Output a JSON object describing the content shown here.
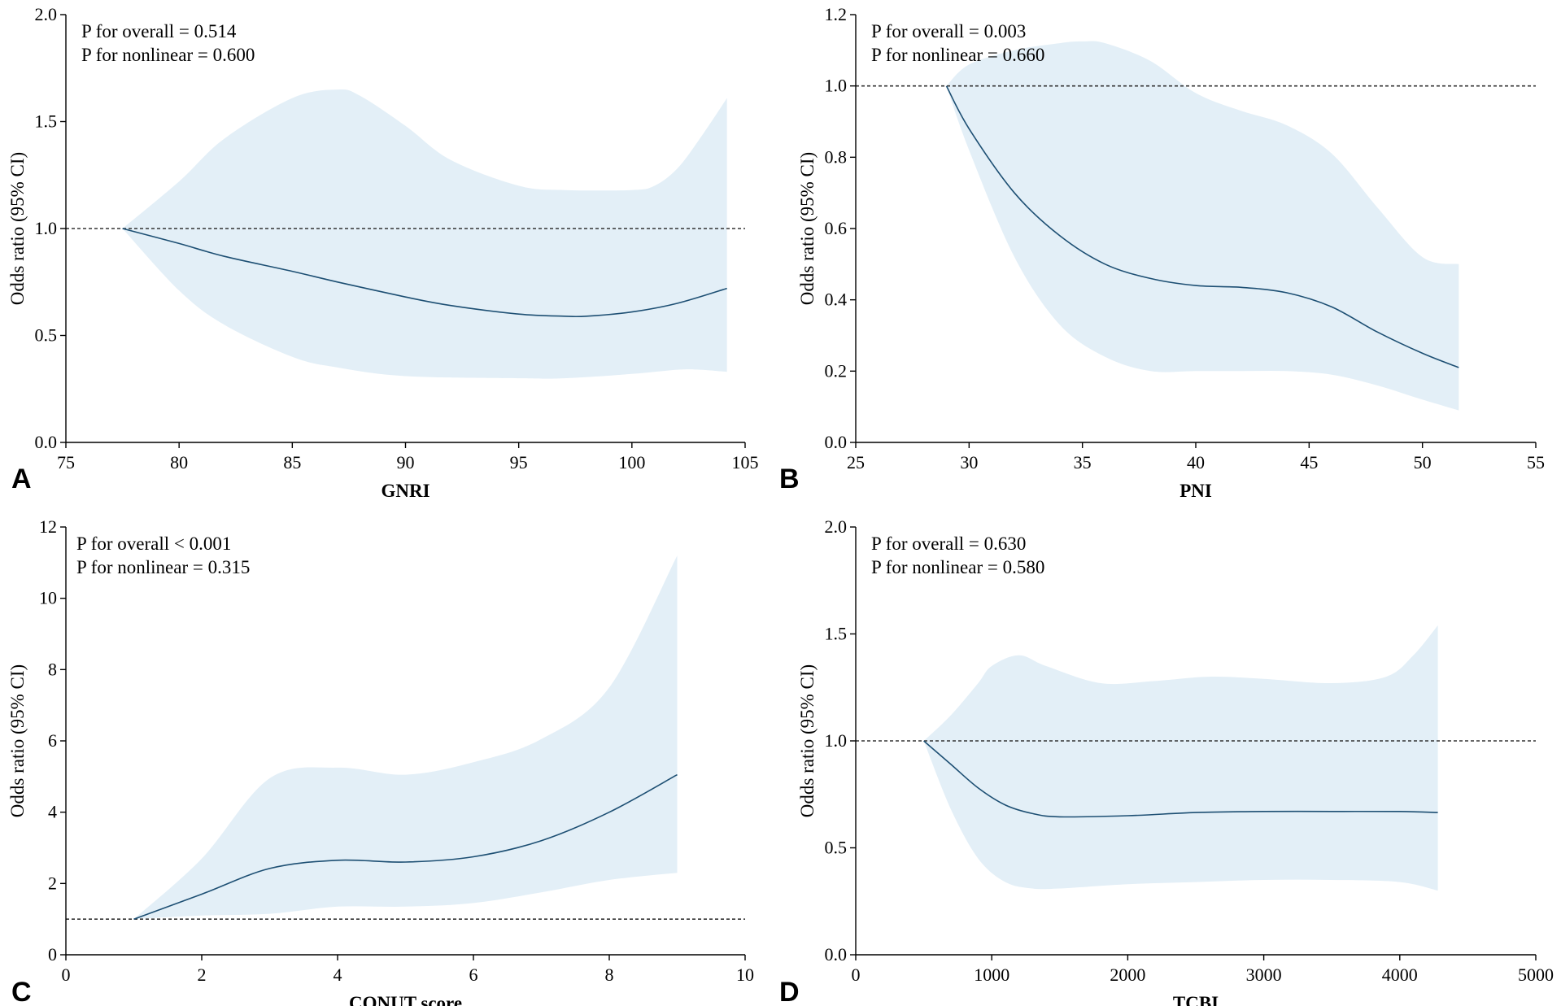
{
  "colors": {
    "band": "#e3eff7",
    "curve": "#1d4f73",
    "ref_line": "#333333",
    "axis": "#000000"
  },
  "chart_data": [
    {
      "id": "A",
      "type": "line",
      "panel_letter": "A",
      "xlabel": "GNRI",
      "ylabel": "Odds ratio (95% CI)",
      "xlim": [
        75,
        105
      ],
      "ylim": [
        0,
        2.0
      ],
      "xticks": [
        75,
        80,
        85,
        90,
        95,
        100,
        105
      ],
      "yticks": [
        0.0,
        0.5,
        1.0,
        1.5,
        2.0
      ],
      "ytick_labels": [
        "0.0",
        "0.5",
        "1.0",
        "1.5",
        "2.0"
      ],
      "reference_line": 1.0,
      "annotations": [
        "P for overall = 0.514",
        "P for nonlinear = 0.600"
      ],
      "series": [
        {
          "name": "Odds ratio",
          "x": [
            77.5,
            80,
            82,
            85,
            87,
            90,
            92,
            95,
            97,
            98,
            100,
            102,
            104.2
          ],
          "y": [
            1.0,
            0.93,
            0.87,
            0.8,
            0.75,
            0.68,
            0.64,
            0.6,
            0.59,
            0.59,
            0.61,
            0.65,
            0.72
          ]
        },
        {
          "name": "95% CI upper",
          "x": [
            77.5,
            80,
            82,
            85,
            87,
            88,
            90,
            92,
            95,
            97,
            100,
            101,
            102,
            103,
            104.2
          ],
          "y": [
            1.0,
            1.22,
            1.42,
            1.61,
            1.65,
            1.62,
            1.48,
            1.32,
            1.2,
            1.18,
            1.18,
            1.2,
            1.28,
            1.42,
            1.61
          ]
        },
        {
          "name": "95% CI lower",
          "x": [
            77.5,
            80,
            82,
            85,
            87,
            90,
            95,
            97,
            100,
            102,
            103,
            104.2
          ],
          "y": [
            1.0,
            0.71,
            0.55,
            0.4,
            0.35,
            0.31,
            0.3,
            0.3,
            0.32,
            0.34,
            0.34,
            0.33
          ]
        }
      ]
    },
    {
      "id": "B",
      "type": "line",
      "panel_letter": "B",
      "xlabel": "PNI",
      "ylabel": "Odds ratio (95% CI)",
      "xlim": [
        25,
        55
      ],
      "ylim": [
        0,
        1.2
      ],
      "xticks": [
        25,
        30,
        35,
        40,
        45,
        50,
        55
      ],
      "yticks": [
        0.0,
        0.2,
        0.4,
        0.6,
        0.8,
        1.0,
        1.2
      ],
      "ytick_labels": [
        "0.0",
        "0.2",
        "0.4",
        "0.6",
        "0.8",
        "1.0",
        "1.2"
      ],
      "reference_line": 1.0,
      "annotations": [
        "P for overall = 0.003",
        "P for nonlinear = 0.660"
      ],
      "series": [
        {
          "name": "Odds ratio",
          "x": [
            29,
            30,
            32,
            34,
            36,
            38,
            40,
            42,
            44,
            46,
            48,
            50,
            51.6
          ],
          "y": [
            1.0,
            0.88,
            0.7,
            0.58,
            0.5,
            0.46,
            0.44,
            0.435,
            0.42,
            0.38,
            0.31,
            0.25,
            0.21
          ]
        },
        {
          "name": "95% CI upper",
          "x": [
            29,
            30,
            32,
            34,
            35,
            36,
            38,
            40,
            42,
            44,
            46,
            48,
            50,
            51.6
          ],
          "y": [
            1.0,
            1.06,
            1.1,
            1.12,
            1.125,
            1.12,
            1.07,
            0.98,
            0.93,
            0.89,
            0.81,
            0.66,
            0.52,
            0.5
          ]
        },
        {
          "name": "95% CI lower",
          "x": [
            29,
            30,
            32,
            34,
            36,
            38,
            40,
            42,
            44,
            46,
            48,
            50,
            51.6
          ],
          "y": [
            1.0,
            0.82,
            0.52,
            0.33,
            0.24,
            0.2,
            0.2,
            0.2,
            0.2,
            0.19,
            0.16,
            0.12,
            0.09
          ]
        }
      ]
    },
    {
      "id": "C",
      "type": "line",
      "panel_letter": "C",
      "xlabel": "CONUT score",
      "ylabel": "Odds ratio (95% CI)",
      "xlim": [
        0,
        10
      ],
      "ylim": [
        0,
        12
      ],
      "xticks": [
        0,
        2,
        4,
        6,
        8,
        10
      ],
      "yticks": [
        0,
        2,
        4,
        6,
        8,
        10,
        12
      ],
      "ytick_labels": [
        "0",
        "2",
        "4",
        "6",
        "8",
        "10",
        "12"
      ],
      "reference_line": 1.0,
      "annotations": [
        "P for overall < 0.001",
        "P for nonlinear = 0.315"
      ],
      "series": [
        {
          "name": "Odds ratio",
          "x": [
            1,
            2,
            3,
            4,
            5,
            6,
            7,
            8,
            9
          ],
          "y": [
            1.0,
            1.7,
            2.42,
            2.65,
            2.6,
            2.75,
            3.2,
            4.0,
            5.05
          ]
        },
        {
          "name": "95% CI upper",
          "x": [
            1,
            2,
            3,
            4,
            5,
            6,
            7,
            8,
            9
          ],
          "y": [
            1.0,
            2.7,
            4.95,
            5.25,
            5.05,
            5.4,
            6.05,
            7.5,
            11.2
          ]
        },
        {
          "name": "95% CI lower",
          "x": [
            1,
            2,
            3,
            4,
            5,
            6,
            7,
            8,
            9
          ],
          "y": [
            1.0,
            1.1,
            1.15,
            1.35,
            1.35,
            1.45,
            1.75,
            2.1,
            2.3
          ]
        }
      ]
    },
    {
      "id": "D",
      "type": "line",
      "panel_letter": "D",
      "xlabel": "TCBI",
      "ylabel": "Odds ratio (95% CI)",
      "xlim": [
        0,
        5000
      ],
      "ylim": [
        0,
        2.0
      ],
      "xticks": [
        0,
        1000,
        2000,
        3000,
        4000,
        5000
      ],
      "yticks": [
        0.0,
        0.5,
        1.0,
        1.5,
        2.0
      ],
      "ytick_labels": [
        "0.0",
        "0.5",
        "1.0",
        "1.5",
        "2.0"
      ],
      "reference_line": 1.0,
      "annotations": [
        "P for overall = 0.630",
        "P for nonlinear = 0.580"
      ],
      "series": [
        {
          "name": "Odds ratio",
          "x": [
            500,
            700,
            900,
            1100,
            1300,
            1500,
            2000,
            2500,
            3000,
            3500,
            4000,
            4280
          ],
          "y": [
            1.0,
            0.89,
            0.78,
            0.7,
            0.66,
            0.645,
            0.65,
            0.665,
            0.67,
            0.67,
            0.67,
            0.665
          ]
        },
        {
          "name": "95% CI upper",
          "x": [
            500,
            700,
            900,
            1000,
            1200,
            1400,
            1800,
            2200,
            2600,
            3000,
            3500,
            3900,
            4100,
            4280
          ],
          "y": [
            1.0,
            1.12,
            1.27,
            1.35,
            1.4,
            1.35,
            1.27,
            1.28,
            1.3,
            1.29,
            1.27,
            1.3,
            1.4,
            1.54
          ]
        },
        {
          "name": "95% CI lower",
          "x": [
            500,
            700,
            900,
            1100,
            1300,
            1500,
            2000,
            2500,
            3000,
            3500,
            4000,
            4280
          ],
          "y": [
            1.0,
            0.68,
            0.45,
            0.34,
            0.31,
            0.31,
            0.33,
            0.34,
            0.35,
            0.35,
            0.34,
            0.3
          ]
        }
      ]
    }
  ]
}
